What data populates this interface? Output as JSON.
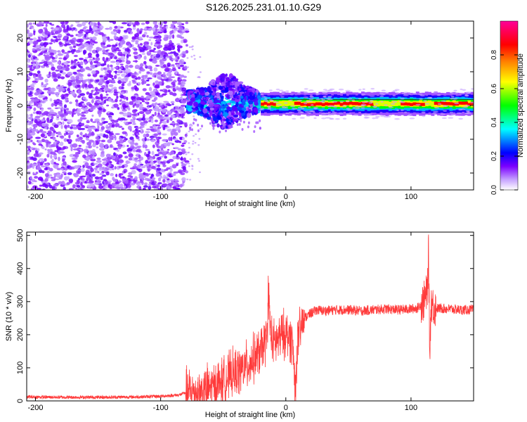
{
  "figure": {
    "title": "S126.2025.231.01.10.G29"
  },
  "chart_data": [
    {
      "type": "heatmap",
      "xlabel": "Height of straight line (km)",
      "ylabel": "Frequency (Hz)",
      "xlim": [
        -207,
        150
      ],
      "ylim": [
        -25,
        25
      ],
      "xticks": [
        -200,
        -100,
        0,
        100
      ],
      "yticks": [
        -20,
        -10,
        0,
        10,
        20
      ],
      "colorbar": {
        "label": "Normalized spectral amplitude",
        "range": [
          0,
          1
        ],
        "ticks": [
          0.0,
          0.2,
          0.4,
          0.6,
          0.8
        ],
        "tick_labels": [
          "0.0",
          "0.2",
          "0.4",
          "0.6",
          "0.8"
        ],
        "colormap": [
          "#ffffff",
          "#7b00ff",
          "#0000ff",
          "#00ffff",
          "#00ff00",
          "#ffff00",
          "#ff8000",
          "#ff0000",
          "#ff0099"
        ]
      },
      "regions": [
        {
          "x": [
            -207,
            -79
          ],
          "description_level": "noise",
          "amplitude": 0.1
        },
        {
          "x": [
            -79,
            -20
          ],
          "freq_center": 0,
          "freq_spread": [
            -5,
            8
          ],
          "amplitude": 0.3
        },
        {
          "x": [
            -20,
            150
          ],
          "freq_center": 0.5,
          "amplitude": 1.0
        }
      ]
    },
    {
      "type": "line",
      "xlabel": "Height of straight line (km)",
      "ylabel": "SNR (10 * v/v)",
      "xlim": [
        -207,
        150
      ],
      "ylim": [
        0,
        510
      ],
      "xticks": [
        -200,
        -100,
        0,
        100
      ],
      "yticks": [
        0,
        100,
        200,
        300,
        400,
        500
      ],
      "series": [
        {
          "color": "#ff3b3b",
          "x": [
            -207,
            -180,
            -150,
            -120,
            -100,
            -85,
            -78,
            -70,
            -60,
            -50,
            -45,
            -40,
            -35,
            -30,
            -25,
            -20,
            -15,
            -14,
            -12,
            -10,
            -5,
            0,
            5,
            8,
            9,
            12,
            15,
            20,
            25,
            30,
            40,
            50,
            60,
            70,
            80,
            90,
            100,
            105,
            110,
            113,
            114,
            115,
            116,
            118,
            120,
            130,
            140,
            150
          ],
          "y": [
            12,
            11,
            11,
            12,
            14,
            18,
            28,
            25,
            40,
            60,
            75,
            85,
            95,
            110,
            130,
            150,
            190,
            335,
            200,
            170,
            190,
            205,
            185,
            30,
            175,
            215,
            250,
            265,
            275,
            272,
            275,
            275,
            272,
            275,
            278,
            275,
            278,
            280,
            300,
            330,
            450,
            130,
            300,
            285,
            280,
            278,
            275,
            275
          ]
        }
      ]
    }
  ]
}
